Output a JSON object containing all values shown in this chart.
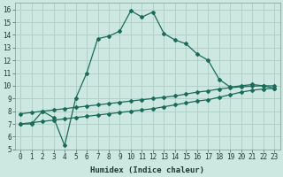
{
  "xlabel": "Humidex (Indice chaleur)",
  "bg_color": "#cce8e0",
  "grid_color": "#b0d0c8",
  "line_color": "#1a6b5a",
  "xlim": [
    -0.5,
    23.5
  ],
  "ylim": [
    5,
    16.5
  ],
  "xticks": [
    0,
    1,
    2,
    3,
    4,
    5,
    6,
    7,
    8,
    9,
    10,
    11,
    12,
    13,
    14,
    15,
    16,
    17,
    18,
    19,
    20,
    21,
    22,
    23
  ],
  "yticks": [
    5,
    6,
    7,
    8,
    9,
    10,
    11,
    12,
    13,
    14,
    15,
    16
  ],
  "curve1_x": [
    0,
    1,
    2,
    3,
    4,
    5,
    6,
    7,
    8,
    9,
    10,
    11,
    12,
    13,
    14,
    15,
    16,
    17,
    18,
    19,
    20,
    21,
    22,
    23
  ],
  "curve1_y": [
    7.0,
    7.0,
    8.0,
    7.5,
    5.3,
    9.0,
    11.0,
    13.7,
    13.9,
    14.3,
    15.9,
    15.4,
    15.8,
    14.1,
    13.6,
    13.3,
    12.5,
    12.0,
    10.5,
    9.9,
    10.0,
    10.1,
    10.0,
    9.8
  ],
  "curve2_x": [
    0,
    1,
    2,
    3,
    4,
    5,
    6,
    7,
    8,
    9,
    10,
    11,
    12,
    13,
    14,
    15,
    16,
    17,
    18,
    19,
    20,
    21,
    22,
    23
  ],
  "curve2_y": [
    7.0,
    7.1,
    7.2,
    7.3,
    7.4,
    7.5,
    7.6,
    7.7,
    7.8,
    7.9,
    8.0,
    8.1,
    8.2,
    8.35,
    8.5,
    8.65,
    8.8,
    8.9,
    9.1,
    9.3,
    9.5,
    9.65,
    9.75,
    9.8
  ],
  "curve3_x": [
    0,
    1,
    2,
    3,
    4,
    5,
    6,
    7,
    8,
    9,
    10,
    11,
    12,
    13,
    14,
    15,
    16,
    17,
    18,
    19,
    20,
    21,
    22,
    23
  ],
  "curve3_y": [
    7.8,
    7.9,
    8.0,
    8.1,
    8.2,
    8.3,
    8.4,
    8.5,
    8.6,
    8.7,
    8.8,
    8.9,
    9.0,
    9.1,
    9.2,
    9.35,
    9.5,
    9.6,
    9.75,
    9.85,
    9.92,
    9.97,
    10.0,
    10.0
  ]
}
